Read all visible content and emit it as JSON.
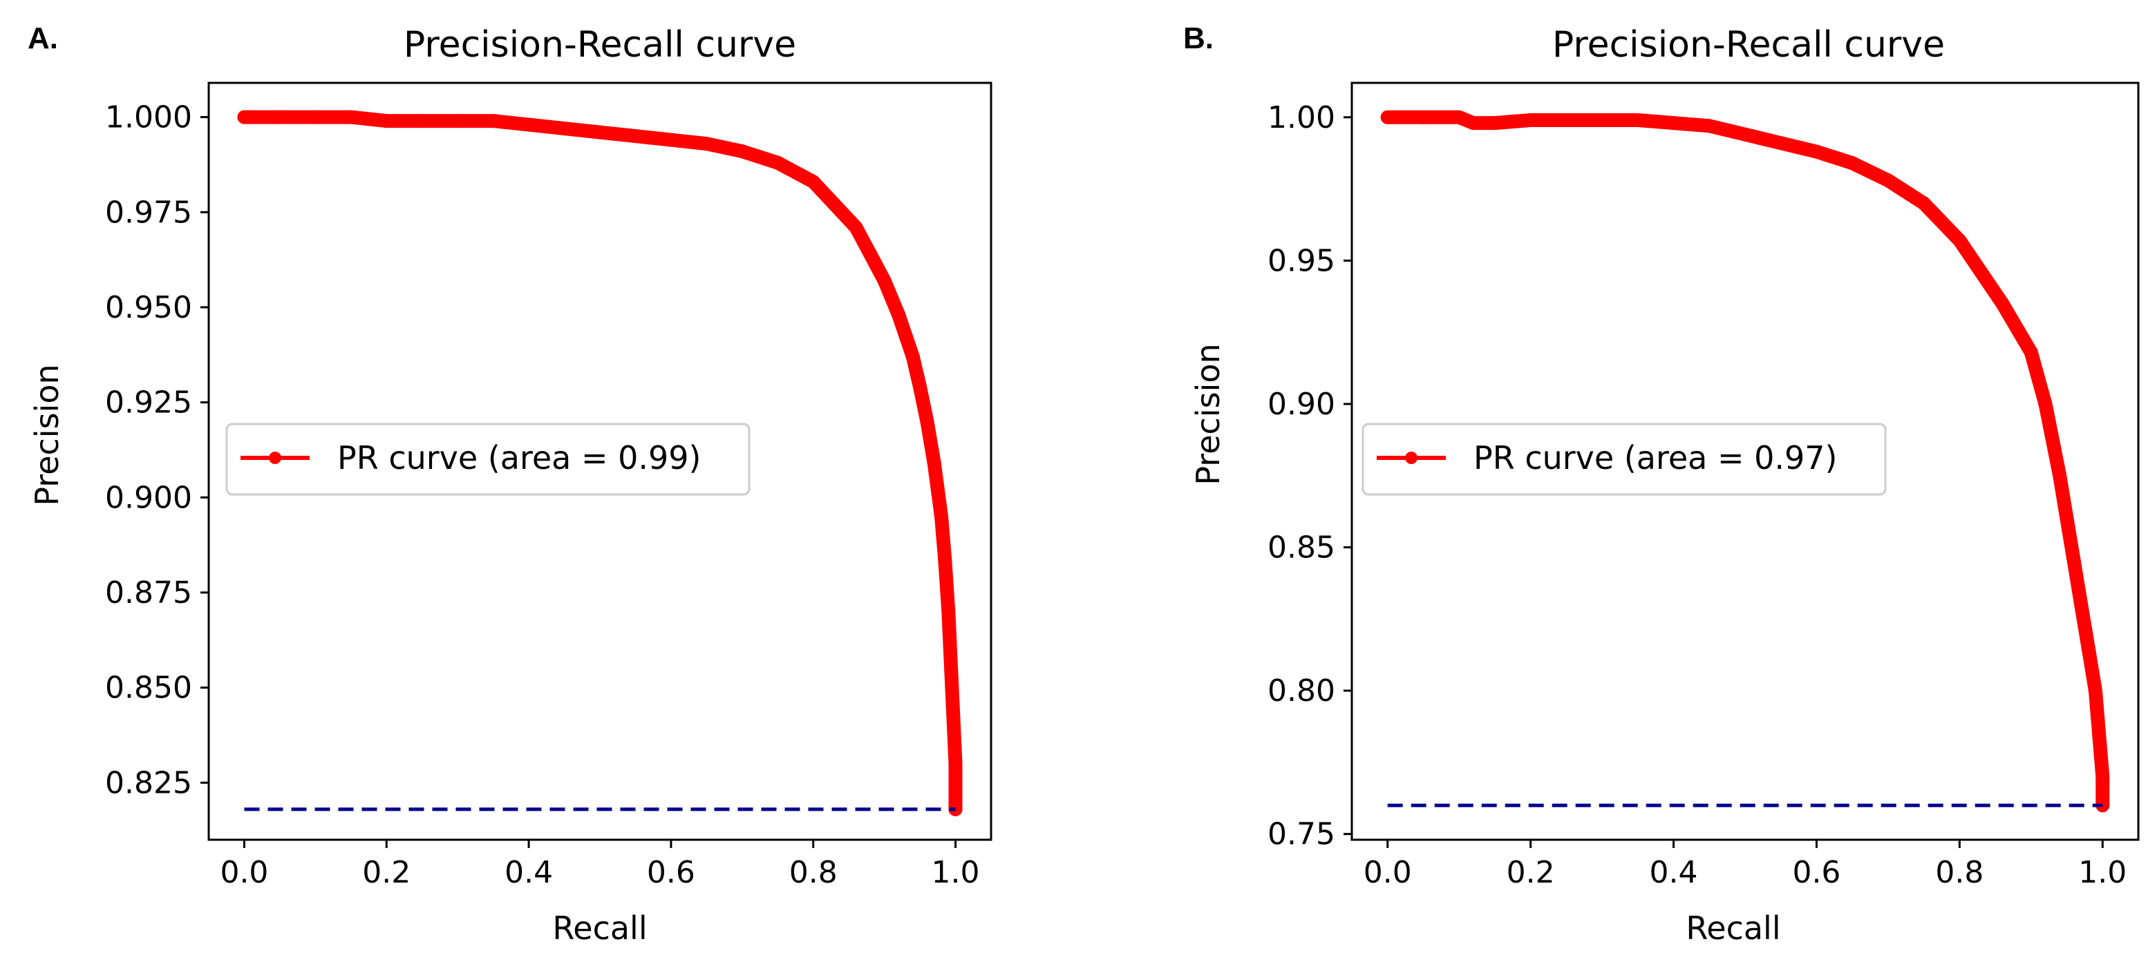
{
  "chart_data": [
    {
      "type": "line",
      "panel_label": "A.",
      "title": "Precision-Recall curve",
      "xlabel": "Recall",
      "ylabel": "Precision",
      "xlim": [
        -0.05,
        1.05
      ],
      "ylim": [
        0.81,
        1.009
      ],
      "xticks": [
        0.0,
        0.2,
        0.4,
        0.6,
        0.8,
        1.0
      ],
      "xtick_labels": [
        "0.0",
        "0.2",
        "0.4",
        "0.6",
        "0.8",
        "1.0"
      ],
      "yticks": [
        0.825,
        0.85,
        0.875,
        0.9,
        0.925,
        0.95,
        0.975,
        1.0
      ],
      "ytick_labels": [
        "0.825",
        "0.850",
        "0.875",
        "0.900",
        "0.925",
        "0.950",
        "0.975",
        "1.000"
      ],
      "grid": false,
      "legend_position": "center-left",
      "series": [
        {
          "name": "PR curve (area = 0.99)",
          "color": "#ff0000",
          "style": "solid-with-markers",
          "x": [
            0.0,
            0.05,
            0.1,
            0.15,
            0.2,
            0.25,
            0.3,
            0.35,
            0.4,
            0.45,
            0.5,
            0.55,
            0.6,
            0.65,
            0.7,
            0.75,
            0.8,
            0.83,
            0.86,
            0.88,
            0.9,
            0.92,
            0.94,
            0.95,
            0.96,
            0.97,
            0.98,
            0.985,
            0.99,
            0.995,
            1.0,
            1.0
          ],
          "y": [
            1.0,
            1.0,
            1.0,
            1.0,
            0.999,
            0.999,
            0.999,
            0.999,
            0.998,
            0.997,
            0.996,
            0.995,
            0.994,
            0.993,
            0.991,
            0.988,
            0.983,
            0.977,
            0.971,
            0.964,
            0.957,
            0.948,
            0.937,
            0.929,
            0.92,
            0.909,
            0.895,
            0.884,
            0.87,
            0.85,
            0.83,
            0.818
          ]
        },
        {
          "name": "",
          "color": "#00008b",
          "style": "dashed",
          "x": [
            0.0,
            1.0
          ],
          "y": [
            0.818,
            0.818
          ]
        }
      ]
    },
    {
      "type": "line",
      "panel_label": "B.",
      "title": "Precision-Recall curve",
      "xlabel": "Recall",
      "ylabel": "Precision",
      "xlim": [
        -0.05,
        1.05
      ],
      "ylim": [
        0.748,
        1.012
      ],
      "xticks": [
        0.0,
        0.2,
        0.4,
        0.6,
        0.8,
        1.0
      ],
      "xtick_labels": [
        "0.0",
        "0.2",
        "0.4",
        "0.6",
        "0.8",
        "1.0"
      ],
      "yticks": [
        0.75,
        0.8,
        0.85,
        0.9,
        0.95,
        1.0
      ],
      "ytick_labels": [
        "0.75",
        "0.80",
        "0.85",
        "0.90",
        "0.95",
        "1.00"
      ],
      "grid": false,
      "legend_position": "center-left",
      "series": [
        {
          "name": "PR curve (area = 0.97)",
          "color": "#ff0000",
          "style": "solid-with-markers",
          "x": [
            0.0,
            0.05,
            0.1,
            0.12,
            0.15,
            0.2,
            0.3,
            0.35,
            0.4,
            0.45,
            0.5,
            0.55,
            0.6,
            0.65,
            0.7,
            0.75,
            0.8,
            0.83,
            0.86,
            0.9,
            0.92,
            0.94,
            0.95,
            0.96,
            0.97,
            0.98,
            0.99,
            0.995,
            1.0,
            1.0
          ],
          "y": [
            1.0,
            1.0,
            1.0,
            0.998,
            0.998,
            0.999,
            0.999,
            0.999,
            0.998,
            0.997,
            0.994,
            0.991,
            0.988,
            0.984,
            0.978,
            0.97,
            0.957,
            0.946,
            0.935,
            0.918,
            0.9,
            0.875,
            0.86,
            0.845,
            0.83,
            0.815,
            0.8,
            0.785,
            0.77,
            0.76
          ]
        },
        {
          "name": "",
          "color": "#00008b",
          "style": "dashed",
          "x": [
            0.0,
            1.0
          ],
          "y": [
            0.76,
            0.76
          ]
        }
      ]
    }
  ]
}
